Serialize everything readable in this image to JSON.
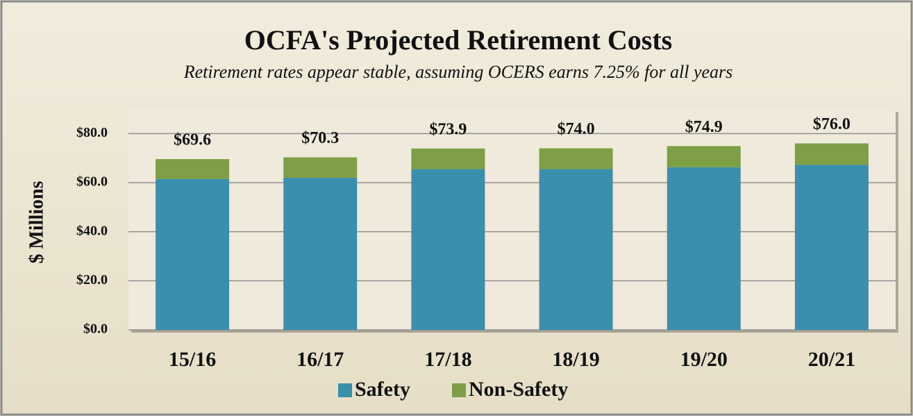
{
  "chart_data": {
    "type": "stacked_bar",
    "title": "OCFA's Projected Retirement Costs",
    "subtitle": "Retirement rates appear stable, assuming OCERS earns 7.25% for all years",
    "y_axis_label": "$ Millions",
    "categories": [
      "15/16",
      "16/17",
      "17/18",
      "18/19",
      "19/20",
      "20/21"
    ],
    "series": [
      {
        "name": "Safety",
        "color": "#3a8fad",
        "values": [
          61.5,
          62.0,
          65.5,
          65.5,
          66.3,
          67.3
        ]
      },
      {
        "name": "Non-Safety",
        "color": "#7e9f45",
        "values": [
          8.1,
          8.3,
          8.4,
          8.5,
          8.6,
          8.7
        ]
      }
    ],
    "total_labels": [
      "$69.6",
      "$70.3",
      "$73.9",
      "$74.0",
      "$74.9",
      "$76.0"
    ],
    "ylim": [
      0,
      90
    ],
    "yticks": [
      {
        "value": 0,
        "label": "$0.0"
      },
      {
        "value": 20,
        "label": "$20.0"
      },
      {
        "value": 40,
        "label": "$40.0"
      },
      {
        "value": 60,
        "label": "$60.0"
      },
      {
        "value": 80,
        "label": "$80.0"
      }
    ],
    "grid": true,
    "legend": "bottom"
  }
}
